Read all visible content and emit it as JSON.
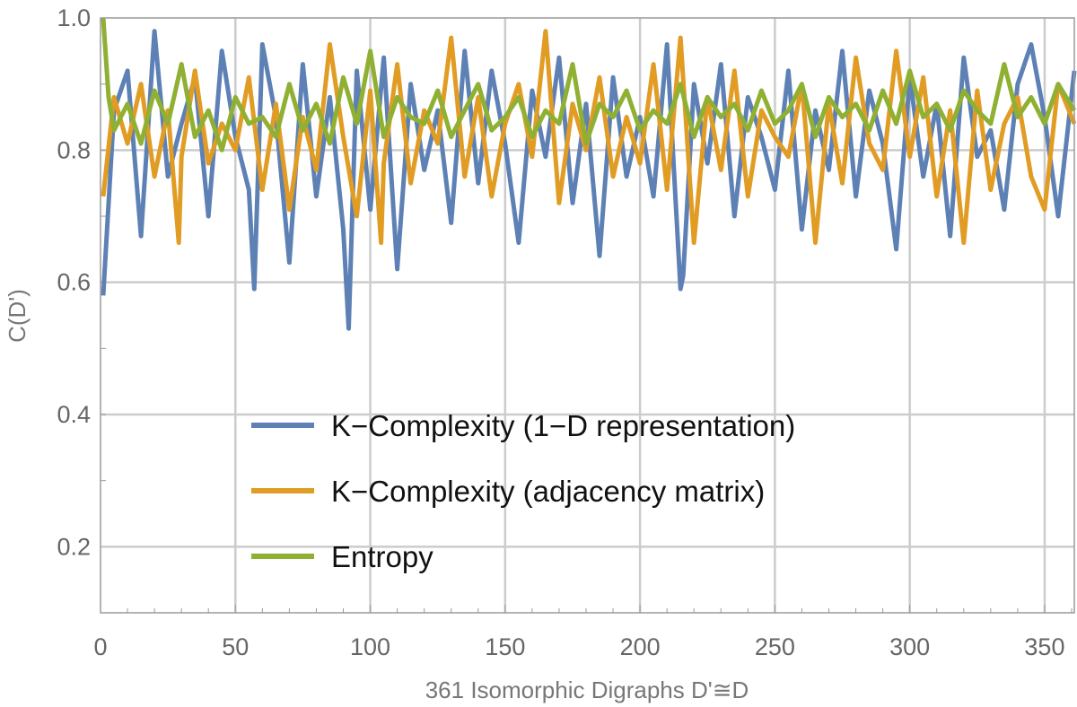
{
  "chart_data": {
    "type": "line",
    "xlabel": "361 Isomorphic Digraphs D'≅D",
    "ylabel": "C(D')",
    "xlim": [
      0,
      361
    ],
    "ylim": [
      0.1,
      1.0
    ],
    "x_ticks": [
      0,
      50,
      100,
      150,
      200,
      250,
      300,
      350
    ],
    "x_tick_labels": [
      "0",
      "50",
      "100",
      "150",
      "200",
      "250",
      "300",
      "350"
    ],
    "y_ticks": [
      0.2,
      0.4,
      0.6,
      0.8,
      1.0
    ],
    "y_tick_labels": [
      "0.2",
      "0.4",
      "0.6",
      "0.8",
      "1.0"
    ],
    "grid": true,
    "legend_position": "center-bottom",
    "series": [
      {
        "name": "K−Complexity (1−D representation)",
        "color": "#5E81B5",
        "x": [
          1,
          5,
          10,
          15,
          20,
          25,
          30,
          35,
          40,
          45,
          50,
          55,
          57,
          60,
          65,
          70,
          75,
          80,
          85,
          90,
          92,
          95,
          100,
          105,
          110,
          115,
          120,
          125,
          130,
          135,
          140,
          145,
          150,
          155,
          160,
          165,
          170,
          175,
          180,
          185,
          190,
          195,
          200,
          205,
          210,
          215,
          216,
          220,
          225,
          230,
          235,
          240,
          245,
          250,
          255,
          260,
          265,
          270,
          275,
          280,
          285,
          290,
          295,
          300,
          305,
          310,
          315,
          320,
          325,
          330,
          335,
          340,
          345,
          350,
          355,
          361
        ],
        "y": [
          0.58,
          0.86,
          0.92,
          0.67,
          0.98,
          0.76,
          0.84,
          0.91,
          0.7,
          0.95,
          0.82,
          0.74,
          0.59,
          0.96,
          0.85,
          0.63,
          0.93,
          0.73,
          0.88,
          0.68,
          0.53,
          0.92,
          0.71,
          0.94,
          0.62,
          0.9,
          0.77,
          0.86,
          0.69,
          0.95,
          0.75,
          0.92,
          0.81,
          0.66,
          0.89,
          0.79,
          0.94,
          0.72,
          0.87,
          0.64,
          0.91,
          0.76,
          0.85,
          0.73,
          0.96,
          0.59,
          0.61,
          0.9,
          0.78,
          0.93,
          0.7,
          0.88,
          0.82,
          0.74,
          0.92,
          0.68,
          0.86,
          0.77,
          0.95,
          0.73,
          0.89,
          0.81,
          0.65,
          0.91,
          0.76,
          0.87,
          0.67,
          0.94,
          0.79,
          0.83,
          0.71,
          0.9,
          0.96,
          0.85,
          0.7,
          0.92
        ]
      },
      {
        "name": "K−Complexity (adjacency matrix)",
        "color": "#E19C24",
        "x": [
          1,
          5,
          10,
          15,
          20,
          25,
          29,
          30,
          35,
          40,
          45,
          50,
          55,
          60,
          65,
          70,
          75,
          80,
          85,
          90,
          95,
          100,
          104,
          105,
          110,
          115,
          120,
          125,
          130,
          135,
          140,
          145,
          150,
          155,
          160,
          165,
          170,
          175,
          180,
          185,
          190,
          195,
          200,
          205,
          210,
          215,
          220,
          225,
          230,
          235,
          240,
          245,
          250,
          255,
          260,
          265,
          270,
          275,
          280,
          285,
          290,
          295,
          300,
          305,
          310,
          315,
          320,
          325,
          330,
          335,
          340,
          345,
          350,
          355,
          361
        ],
        "y": [
          0.73,
          0.88,
          0.81,
          0.9,
          0.76,
          0.86,
          0.66,
          0.79,
          0.92,
          0.78,
          0.84,
          0.8,
          0.91,
          0.74,
          0.87,
          0.71,
          0.85,
          0.77,
          0.96,
          0.82,
          0.7,
          0.89,
          0.66,
          0.78,
          0.93,
          0.75,
          0.86,
          0.81,
          0.97,
          0.76,
          0.88,
          0.73,
          0.84,
          0.9,
          0.79,
          0.98,
          0.72,
          0.87,
          0.8,
          0.91,
          0.76,
          0.85,
          0.78,
          0.93,
          0.74,
          0.97,
          0.66,
          0.88,
          0.77,
          0.92,
          0.73,
          0.86,
          0.82,
          0.79,
          0.9,
          0.66,
          0.87,
          0.75,
          0.94,
          0.81,
          0.77,
          0.95,
          0.79,
          0.91,
          0.73,
          0.86,
          0.66,
          0.89,
          0.74,
          0.84,
          0.88,
          0.76,
          0.71,
          0.9,
          0.84
        ]
      },
      {
        "name": "Entropy",
        "color": "#8FB032",
        "x": [
          1,
          3,
          5,
          10,
          15,
          20,
          25,
          30,
          35,
          40,
          45,
          50,
          55,
          60,
          65,
          70,
          75,
          80,
          85,
          90,
          95,
          100,
          105,
          110,
          115,
          120,
          125,
          130,
          135,
          140,
          145,
          150,
          155,
          160,
          165,
          170,
          175,
          180,
          185,
          190,
          195,
          200,
          205,
          210,
          215,
          220,
          225,
          230,
          235,
          240,
          245,
          250,
          255,
          260,
          265,
          270,
          275,
          280,
          285,
          290,
          295,
          300,
          305,
          310,
          315,
          320,
          325,
          330,
          335,
          340,
          345,
          350,
          355,
          361
        ],
        "y": [
          1.0,
          0.88,
          0.83,
          0.87,
          0.81,
          0.89,
          0.84,
          0.93,
          0.82,
          0.86,
          0.8,
          0.88,
          0.84,
          0.85,
          0.82,
          0.9,
          0.83,
          0.87,
          0.81,
          0.91,
          0.84,
          0.95,
          0.82,
          0.88,
          0.85,
          0.84,
          0.89,
          0.82,
          0.86,
          0.9,
          0.83,
          0.85,
          0.88,
          0.82,
          0.86,
          0.84,
          0.93,
          0.81,
          0.87,
          0.85,
          0.89,
          0.83,
          0.86,
          0.84,
          0.9,
          0.82,
          0.88,
          0.85,
          0.87,
          0.83,
          0.89,
          0.84,
          0.86,
          0.9,
          0.82,
          0.88,
          0.85,
          0.87,
          0.83,
          0.89,
          0.84,
          0.92,
          0.85,
          0.87,
          0.83,
          0.89,
          0.86,
          0.84,
          0.93,
          0.85,
          0.88,
          0.84,
          0.9,
          0.86
        ]
      }
    ]
  }
}
